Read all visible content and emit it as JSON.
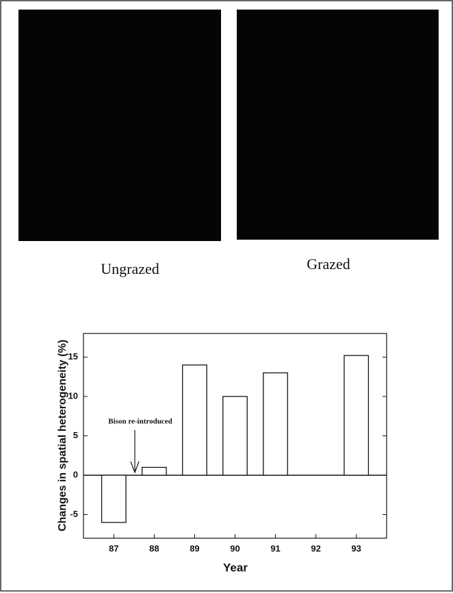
{
  "images": [
    {
      "label": "Ungrazed"
    },
    {
      "label": "Grazed"
    }
  ],
  "chart_data": {
    "type": "bar",
    "x": [
      87,
      88,
      89,
      90,
      91,
      92,
      93
    ],
    "values": [
      -6,
      1,
      14,
      10,
      13,
      null,
      15.2
    ],
    "xlim": [
      86.25,
      93.75
    ],
    "xticks": [
      87,
      88,
      89,
      90,
      91,
      92,
      93
    ],
    "ylim": [
      -8,
      18
    ],
    "yticks": [
      -5,
      0,
      5,
      10,
      15
    ],
    "x_label": "Year",
    "y_label": "Changes in spatial heterogeneity (%)",
    "annotation": "Bison re-introduced",
    "color": "#ffffff"
  }
}
